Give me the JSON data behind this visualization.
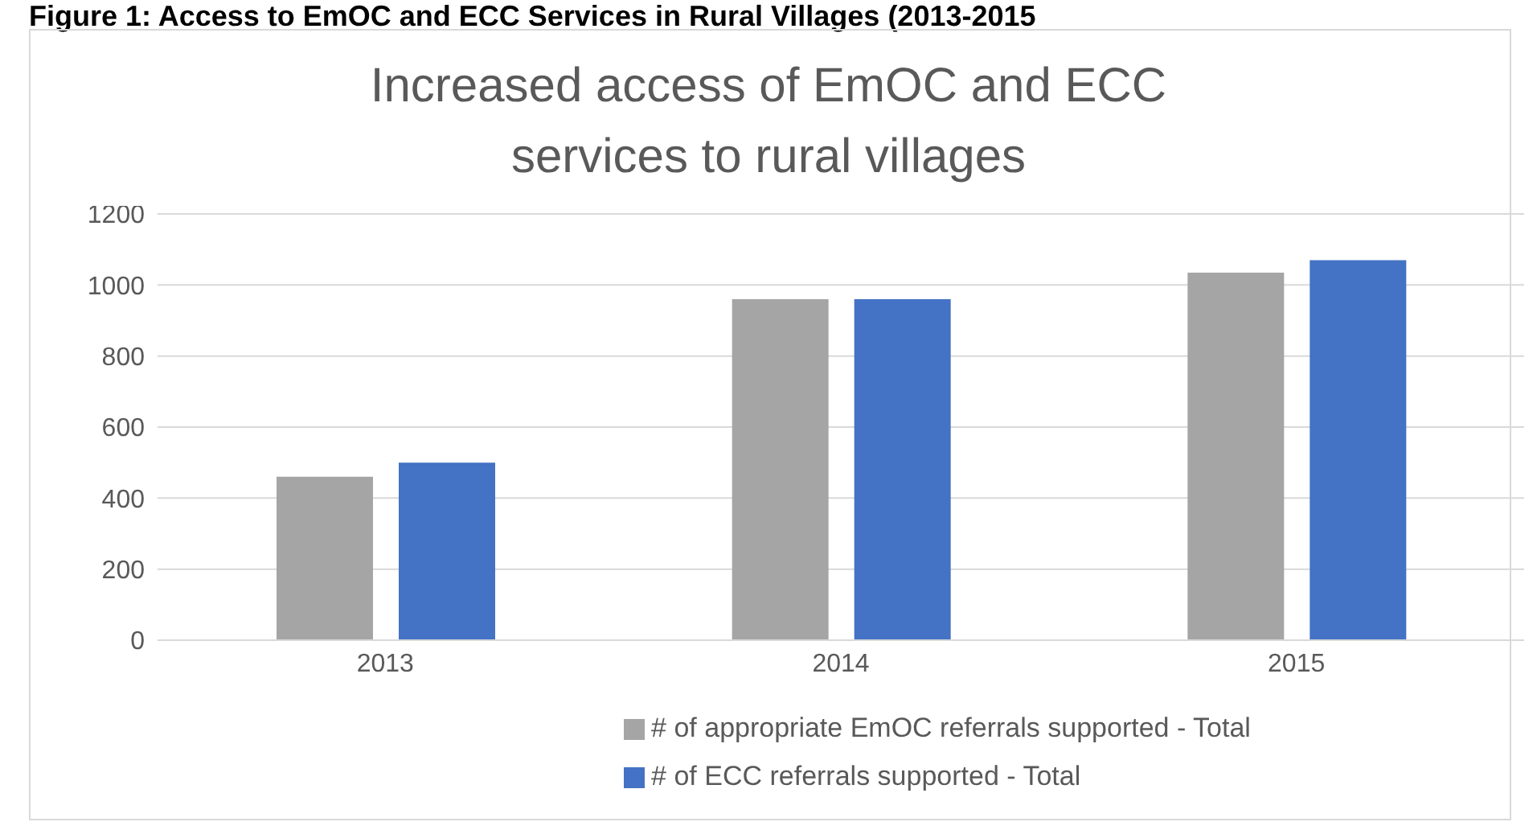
{
  "chart_data": {
    "type": "bar",
    "title": "Increased access of EmOC and ECC services to rural villages",
    "annotations": [
      "Figure 1: Access to EmOC and ECC Services in Rural Villages (2013-2015"
    ],
    "categories": [
      "2013",
      "2014",
      "2015"
    ],
    "series": [
      {
        "name": "# of appropriate EmOC referrals supported - Total",
        "color": "#a5a5a5",
        "values": [
          460,
          960,
          1035
        ]
      },
      {
        "name": "# of ECC referrals supported - Total",
        "color": "#4472c4",
        "values": [
          500,
          960,
          1070
        ]
      }
    ],
    "ylim": [
      0,
      1200
    ],
    "yticks": [
      0,
      200,
      400,
      600,
      800,
      1000,
      1200
    ],
    "grid": "y",
    "legend": "bottom"
  }
}
